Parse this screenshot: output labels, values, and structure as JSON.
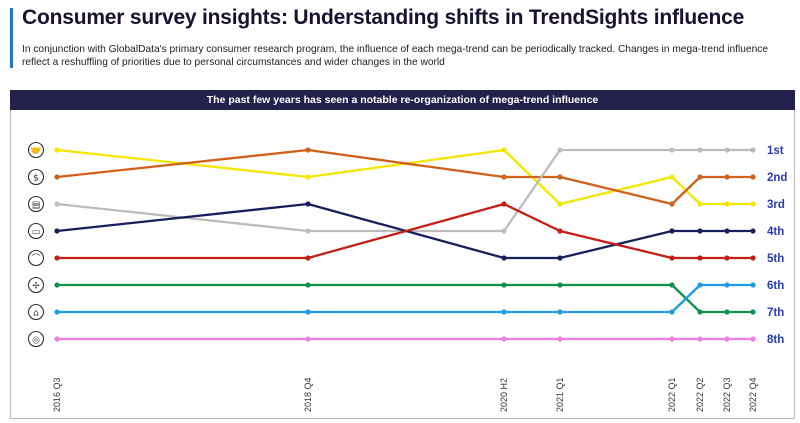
{
  "header": {
    "title": "Consumer survey insights: Understanding shifts in TrendSights influence",
    "subtitle": "In conjunction with GlobalData's primary consumer research program, the influence of each mega-trend can be periodically tracked. Changes in mega-trend influence reflect a reshuffling of priorities due to personal circumstances and wider changes in the world"
  },
  "chart_data": {
    "type": "line",
    "title": "The past few years has seen a notable re-organization of mega-trend influence",
    "xlabel": "",
    "ylabel": "",
    "x": [
      "2016 Q3",
      "2018 Q4",
      "2020 H2",
      "2021 Q1",
      "2022 Q1",
      "2022 Q2",
      "2022 Q3",
      "2022 Q4"
    ],
    "y_categories": [
      "1st",
      "2nd",
      "3rd",
      "4th",
      "5th",
      "6th",
      "7th",
      "8th"
    ],
    "y_inverted": true,
    "grid": false,
    "legend": "none",
    "series": [
      {
        "color": "#f5e600",
        "icon": "handshake-icon",
        "values": [
          1,
          2,
          1,
          3,
          2,
          3,
          3,
          3
        ]
      },
      {
        "color": "#d0611b",
        "icon": "dollar-coin-icon",
        "values": [
          2,
          1,
          2,
          2,
          3,
          2,
          2,
          2
        ]
      },
      {
        "color": "#bcbcbc",
        "icon": "clipboard-icon",
        "values": [
          3,
          4,
          4,
          1,
          1,
          1,
          1,
          1
        ]
      },
      {
        "color": "#17205c",
        "icon": "id-card-icon",
        "values": [
          4,
          3,
          5,
          5,
          4,
          4,
          4,
          4
        ]
      },
      {
        "color": "#c41f14",
        "icon": "head-profile-icon",
        "values": [
          5,
          5,
          3,
          4,
          5,
          5,
          5,
          5
        ]
      },
      {
        "color": "#12914a",
        "icon": "wind-turbine-icon",
        "values": [
          6,
          6,
          6,
          6,
          6,
          7,
          7,
          7
        ]
      },
      {
        "color": "#1e9ce6",
        "icon": "factory-icon",
        "values": [
          7,
          7,
          7,
          7,
          7,
          6,
          6,
          6
        ]
      },
      {
        "color": "#f07de0",
        "icon": "globe-icon",
        "values": [
          8,
          8,
          8,
          8,
          8,
          8,
          8,
          8
        ]
      }
    ]
  }
}
